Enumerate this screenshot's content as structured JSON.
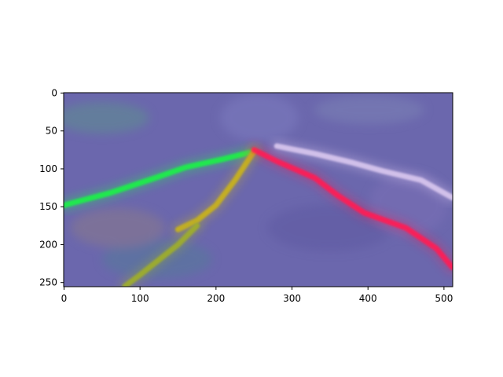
{
  "chart_data": {
    "type": "heatmap",
    "title": "",
    "xlabel": "",
    "ylabel": "",
    "xlim": [
      0,
      511
    ],
    "ylim": [
      255,
      0
    ],
    "x_ticks": [
      0,
      100,
      200,
      300,
      400,
      500
    ],
    "y_ticks": [
      0,
      50,
      100,
      150,
      200,
      250
    ],
    "grid": false,
    "legend": "none",
    "background_color": "#6b67ad",
    "series": [
      {
        "color": "#1ef04a",
        "points": [
          [
            0,
            148
          ],
          [
            60,
            132
          ],
          [
            120,
            112
          ],
          [
            160,
            98
          ],
          [
            210,
            87
          ],
          [
            250,
            77
          ]
        ]
      },
      {
        "color": "#c9b21a",
        "points": [
          [
            250,
            77
          ],
          [
            225,
            115
          ],
          [
            200,
            148
          ],
          [
            175,
            168
          ],
          [
            150,
            180
          ]
        ]
      },
      {
        "color": "#9fae2c",
        "points": [
          [
            175,
            175
          ],
          [
            150,
            200
          ],
          [
            125,
            220
          ],
          [
            100,
            240
          ],
          [
            80,
            255
          ]
        ]
      },
      {
        "color": "#ff1f55",
        "points": [
          [
            250,
            75
          ],
          [
            280,
            90
          ],
          [
            330,
            112
          ],
          [
            360,
            135
          ],
          [
            395,
            158
          ],
          [
            450,
            178
          ],
          [
            490,
            205
          ],
          [
            511,
            230
          ]
        ]
      },
      {
        "color": "#d8c6ee",
        "points": [
          [
            280,
            70
          ],
          [
            330,
            80
          ],
          [
            380,
            92
          ],
          [
            420,
            103
          ],
          [
            470,
            115
          ],
          [
            511,
            138
          ]
        ]
      }
    ]
  }
}
